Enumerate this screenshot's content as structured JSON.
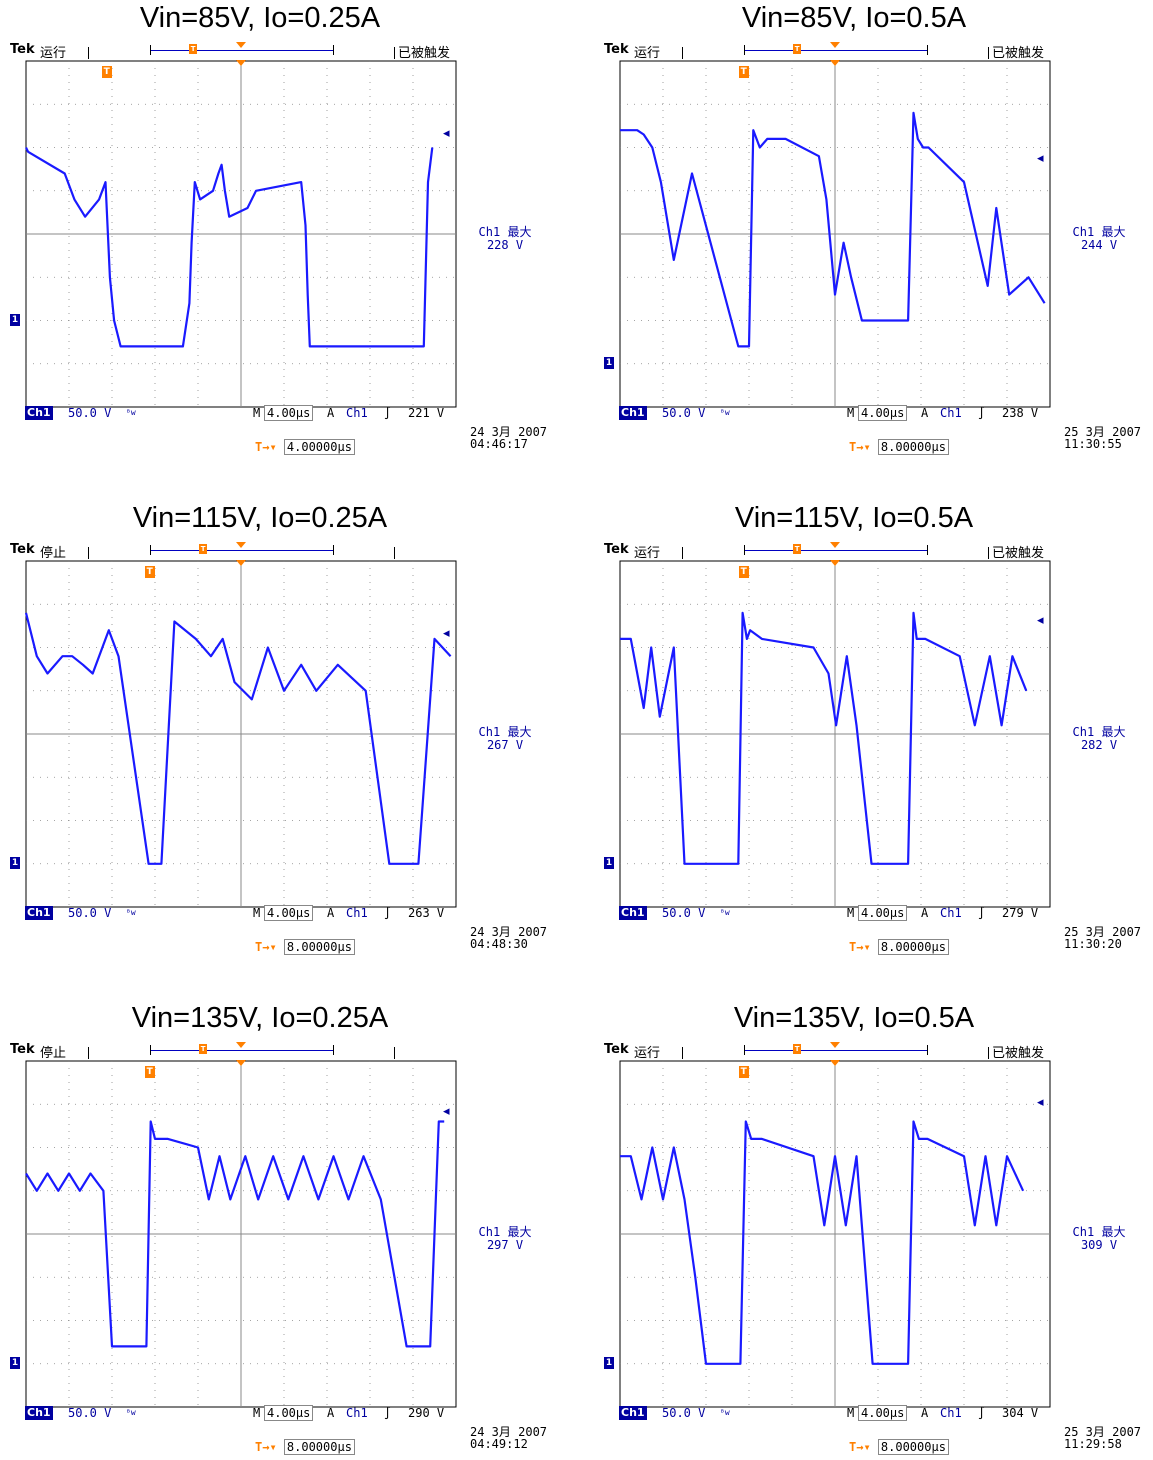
{
  "panels": [
    {
      "title": "Vin=85V, Io=0.25A",
      "brand": "Tek",
      "status": "运行",
      "triggered": "已被触发",
      "channel": "Ch1",
      "volts_div": "50.0 V",
      "timebase": "4.00μs",
      "trig_source": "Ch1",
      "trig_level": "221 V",
      "max_label": "Ch1 最大",
      "max_value": "228 V",
      "date": "24 3月  2007",
      "time": "04:46:17",
      "delay": "4.00000μs",
      "trig_pos_div": 1.9,
      "gnd_div": 6.0,
      "level_marker_div": 1.7
    },
    {
      "title": "Vin=85V, Io=0.5A",
      "brand": "Tek",
      "status": "运行",
      "triggered": "已被触发",
      "channel": "Ch1",
      "volts_div": "50.0 V",
      "timebase": "4.00μs",
      "trig_source": "Ch1",
      "trig_level": "238 V",
      "max_label": "Ch1 最大",
      "max_value": "244 V",
      "date": "25 3月  2007",
      "time": "11:30:55",
      "delay": "8.00000μs",
      "trig_pos_div": 2.9,
      "gnd_div": 7.0,
      "level_marker_div": 2.3
    },
    {
      "title": "Vin=115V, Io=0.25A",
      "brand": "Tek",
      "status": "停止",
      "triggered": "",
      "channel": "Ch1",
      "volts_div": "50.0 V",
      "timebase": "4.00μs",
      "trig_source": "Ch1",
      "trig_level": "263 V",
      "max_label": "Ch1 最大",
      "max_value": "267 V",
      "date": "24 3月  2007",
      "time": "04:48:30",
      "delay": "8.00000μs",
      "trig_pos_div": 2.9,
      "gnd_div": 7.0,
      "level_marker_div": 1.7
    },
    {
      "title": "Vin=115V, Io=0.5A",
      "brand": "Tek",
      "status": "运行",
      "triggered": "已被触发",
      "channel": "Ch1",
      "volts_div": "50.0 V",
      "timebase": "4.00μs",
      "trig_source": "Ch1",
      "trig_level": "279 V",
      "max_label": "Ch1 最大",
      "max_value": "282 V",
      "date": "25 3月  2007",
      "time": "11:30:20",
      "delay": "8.00000μs",
      "trig_pos_div": 2.9,
      "gnd_div": 7.0,
      "level_marker_div": 1.4
    },
    {
      "title": "Vin=135V, Io=0.25A",
      "brand": "Tek",
      "status": "停止",
      "triggered": "",
      "channel": "Ch1",
      "volts_div": "50.0 V",
      "timebase": "4.00μs",
      "trig_source": "Ch1",
      "trig_level": "290 V",
      "max_label": "Ch1 最大",
      "max_value": "297 V",
      "date": "24 3月  2007",
      "time": "04:49:12",
      "delay": "8.00000μs",
      "trig_pos_div": 2.9,
      "gnd_div": 7.0,
      "level_marker_div": 1.2
    },
    {
      "title": "Vin=135V, Io=0.5A",
      "brand": "Tek",
      "status": "运行",
      "triggered": "已被触发",
      "channel": "Ch1",
      "volts_div": "50.0 V",
      "timebase": "4.00μs",
      "trig_source": "Ch1",
      "trig_level": "304 V",
      "max_label": "Ch1 最大",
      "max_value": "309 V",
      "date": "25 3月  2007",
      "time": "11:29:58",
      "delay": "8.00000μs",
      "trig_pos_div": 2.9,
      "gnd_div": 7.0,
      "level_marker_div": 1.0
    }
  ],
  "chart_data": [
    {
      "type": "line",
      "title": "Vin=85V, Io=0.25A",
      "xlabel": "",
      "ylabel": "",
      "grid": true,
      "x_units": "μs",
      "y_units": "V",
      "xlim": [
        0,
        40
      ],
      "ylim": [
        -300,
        100
      ],
      "series": [
        {
          "name": "",
          "x": [
            0,
            0.2,
            3.6,
            4.5,
            5.5,
            6.8,
            7.4,
            7.8,
            8.2,
            8.8,
            10.4,
            11.2,
            14.6,
            15.2,
            15.4,
            15.7,
            16.2,
            17.4,
            17.9,
            18.2,
            18.5,
            18.9,
            20.6,
            21.4,
            25.6,
            26.0,
            26.2,
            26.4,
            26.7,
            27.4,
            37.0,
            37.4,
            37.8
          ],
          "y": [
            0,
            -5,
            -30,
            -60,
            -80,
            -60,
            -40,
            -150,
            -200,
            -230,
            -230,
            -230,
            -230,
            -180,
            -110,
            -40,
            -60,
            -50,
            -30,
            -20,
            -50,
            -80,
            -70,
            -50,
            -40,
            -90,
            -170,
            -230,
            -230,
            -230,
            -230,
            -40,
            0
          ]
        }
      ]
    },
    {
      "type": "line",
      "title": "Vin=85V, Io=0.5A",
      "xlabel": "",
      "ylabel": "",
      "grid": true,
      "x_units": "μs",
      "y_units": "V",
      "xlim": [
        0,
        40
      ],
      "ylim": [
        -350,
        50
      ],
      "series": [
        {
          "name": "",
          "x": [
            0,
            1.6,
            2.2,
            3.0,
            3.8,
            5.0,
            6.7,
            11.0,
            12.0,
            12.4,
            13.0,
            13.7,
            15.4,
            18.5,
            19.2,
            20.0,
            20.8,
            21.5,
            22.5,
            26.8,
            27.3,
            27.7,
            28.2,
            28.7,
            32.0,
            34.2,
            35.0,
            36.2,
            38.0,
            39.5
          ],
          "y": [
            -30,
            -30,
            -35,
            -50,
            -90,
            -180,
            -80,
            -280,
            -280,
            -30,
            -50,
            -40,
            -40,
            -60,
            -110,
            -220,
            -160,
            -200,
            -250,
            -250,
            -10,
            -40,
            -50,
            -50,
            -90,
            -210,
            -120,
            -220,
            -200,
            -230
          ]
        }
      ]
    },
    {
      "type": "line",
      "title": "Vin=115V, Io=0.25A",
      "xlabel": "",
      "ylabel": "",
      "grid": true,
      "x_units": "μs",
      "y_units": "V",
      "xlim": [
        0,
        40
      ],
      "ylim": [
        -350,
        50
      ],
      "series": [
        {
          "name": "",
          "x": [
            0,
            1.0,
            2.0,
            3.4,
            4.3,
            5.3,
            6.2,
            7.7,
            8.6,
            11.4,
            12.0,
            12.6,
            13.8,
            15.8,
            17.2,
            18.3,
            19.4,
            21.0,
            22.5,
            24.0,
            25.6,
            27.0,
            29.0,
            31.6,
            33.8,
            36.5,
            38.0,
            39.5
          ],
          "y": [
            -10,
            -60,
            -80,
            -60,
            -60,
            -70,
            -80,
            -30,
            -60,
            -300,
            -300,
            -300,
            -20,
            -40,
            -60,
            -40,
            -90,
            -110,
            -50,
            -100,
            -70,
            -100,
            -70,
            -100,
            -300,
            -300,
            -40,
            -60
          ]
        }
      ]
    },
    {
      "type": "line",
      "title": "Vin=115V, Io=0.5A",
      "xlabel": "",
      "ylabel": "",
      "grid": true,
      "x_units": "μs",
      "y_units": "V",
      "xlim": [
        0,
        40
      ],
      "ylim": [
        -350,
        50
      ],
      "series": [
        {
          "name": "",
          "x": [
            0,
            1.0,
            2.2,
            2.9,
            3.7,
            5.0,
            6.0,
            7.5,
            11.0,
            11.4,
            11.8,
            12.1,
            13.2,
            18.0,
            19.4,
            20.1,
            21.1,
            22.0,
            23.4,
            26.8,
            27.3,
            27.6,
            28.4,
            31.6,
            33.0,
            34.4,
            35.5,
            36.5,
            37.8
          ],
          "y": [
            -40,
            -40,
            -120,
            -50,
            -130,
            -50,
            -300,
            -300,
            -300,
            -10,
            -40,
            -30,
            -40,
            -50,
            -80,
            -140,
            -60,
            -140,
            -300,
            -300,
            -10,
            -40,
            -40,
            -60,
            -140,
            -60,
            -140,
            -60,
            -100
          ]
        }
      ]
    },
    {
      "type": "line",
      "title": "Vin=135V, Io=0.25A",
      "xlabel": "",
      "ylabel": "",
      "grid": true,
      "x_units": "μs",
      "y_units": "V",
      "xlim": [
        0,
        40
      ],
      "ylim": [
        -350,
        50
      ],
      "series": [
        {
          "name": "",
          "x": [
            0,
            1.0,
            2.0,
            3.0,
            4.0,
            5.0,
            6.0,
            7.2,
            8.0,
            8.8,
            11.2,
            11.6,
            12.0,
            13.2,
            16.0,
            17.0,
            18.0,
            19.0,
            20.4,
            21.6,
            23.0,
            24.4,
            25.8,
            27.2,
            28.6,
            30.0,
            31.4,
            33.0,
            35.4,
            37.6,
            38.4,
            38.9
          ],
          "y": [
            -80,
            -100,
            -80,
            -100,
            -80,
            -100,
            -80,
            -100,
            -280,
            -280,
            -280,
            -20,
            -40,
            -40,
            -50,
            -110,
            -60,
            -110,
            -60,
            -110,
            -60,
            -110,
            -60,
            -110,
            -60,
            -110,
            -60,
            -110,
            -280,
            -280,
            -20,
            -20
          ]
        }
      ]
    },
    {
      "type": "line",
      "title": "Vin=135V, Io=0.5A",
      "xlabel": "",
      "ylabel": "",
      "grid": true,
      "x_units": "μs",
      "y_units": "V",
      "xlim": [
        0,
        40
      ],
      "ylim": [
        -350,
        50
      ],
      "series": [
        {
          "name": "",
          "x": [
            0,
            1.0,
            2.0,
            3.0,
            4.0,
            5.0,
            6.0,
            7.0,
            8.0,
            11.2,
            11.7,
            12.2,
            13.2,
            18.0,
            19.0,
            20.0,
            21.0,
            22.0,
            23.5,
            26.8,
            27.3,
            27.8,
            28.6,
            32.0,
            33.0,
            34.0,
            35.0,
            36.0,
            37.5
          ],
          "y": [
            -60,
            -60,
            -110,
            -50,
            -110,
            -50,
            -110,
            -200,
            -300,
            -300,
            -20,
            -40,
            -40,
            -60,
            -140,
            -60,
            -140,
            -60,
            -300,
            -300,
            -20,
            -40,
            -40,
            -60,
            -140,
            -60,
            -140,
            -60,
            -100
          ]
        }
      ]
    }
  ]
}
